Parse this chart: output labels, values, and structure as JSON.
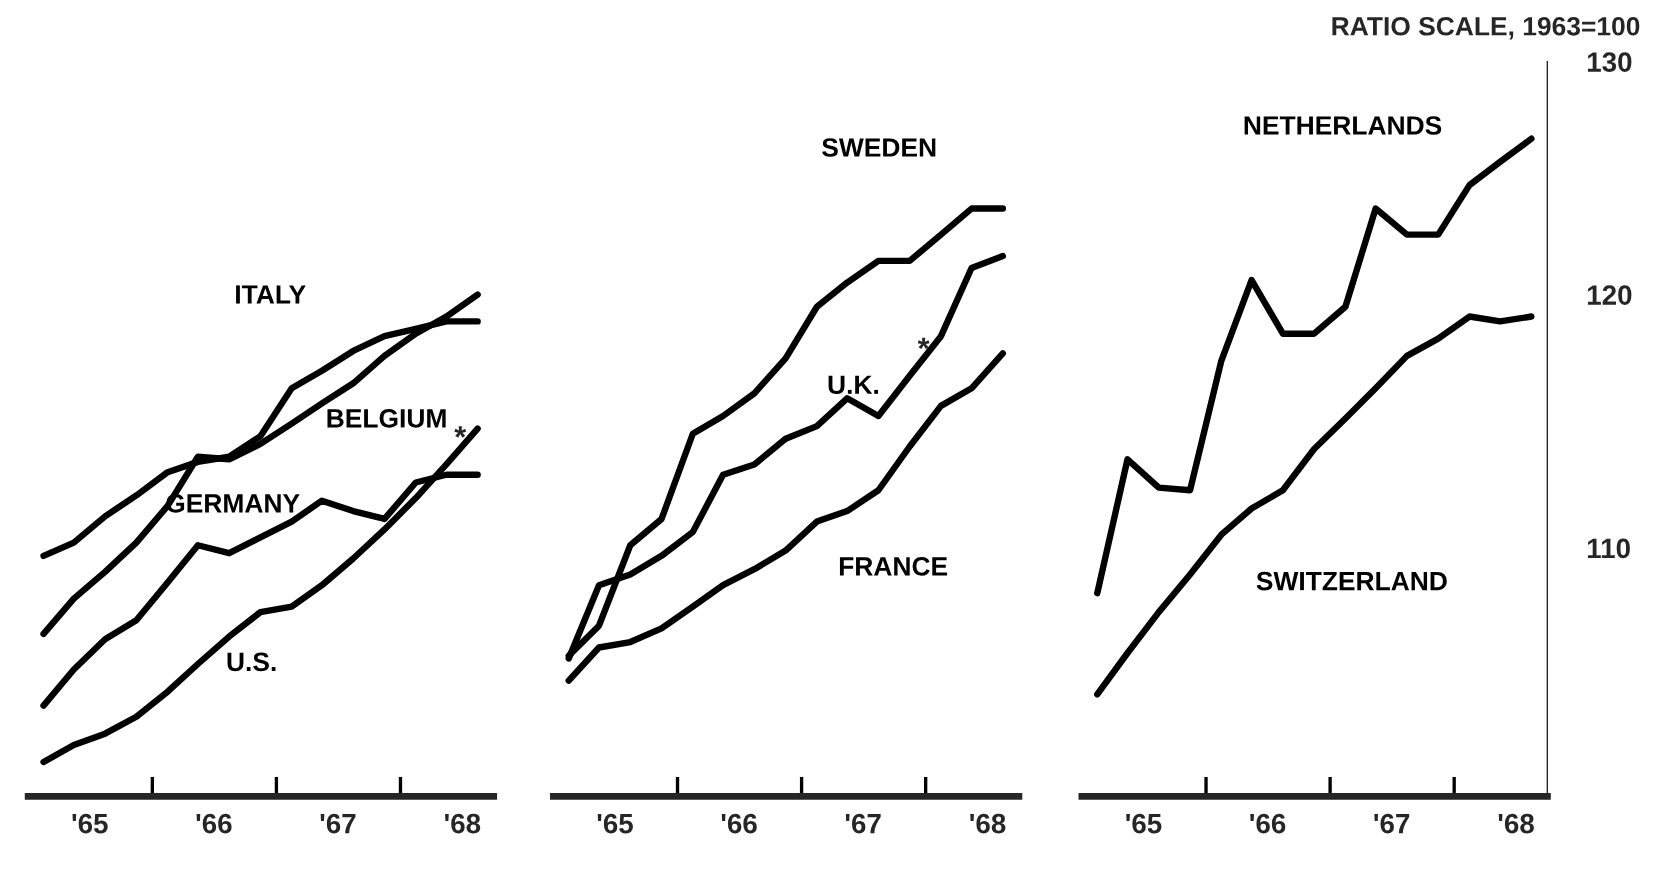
{
  "chart_data": [
    {
      "type": "line",
      "log": "y",
      "x": [
        "1965-02-15",
        "1965-05-15",
        "1965-08-15",
        "1965-11-15",
        "1966-02-15",
        "1966-05-15",
        "1966-08-15",
        "1966-11-15",
        "1967-02-15",
        "1967-05-15",
        "1967-08-15",
        "1967-11-15",
        "1968-02-15",
        "1968-05-15",
        "1968-08-15"
      ],
      "series": [
        {
          "name": "ITALY",
          "color": "#000000",
          "values": [
            109.7,
            110.2,
            111.2,
            112.0,
            112.9,
            113.3,
            113.5,
            114.3,
            116.2,
            116.9,
            117.7,
            118.3,
            118.6,
            118.9,
            118.9
          ]
        },
        {
          "name": "BELGIUM",
          "color": "#000000",
          "values": [
            106.8,
            108.1,
            109.1,
            110.2,
            111.6,
            113.5,
            113.4,
            114.0,
            114.8,
            115.6,
            116.4,
            117.5,
            118.4,
            119.1,
            120.0
          ]
        },
        {
          "name": "GERMANY",
          "color": "#000000",
          "values": [
            104.2,
            105.5,
            106.6,
            107.3,
            108.7,
            110.1,
            109.8,
            110.4,
            111.0,
            111.8,
            111.4,
            111.1,
            112.5,
            112.8,
            112.8
          ]
        },
        {
          "name": "U.S.",
          "color": "#000000",
          "values": [
            102.2,
            102.8,
            103.2,
            103.8,
            104.7,
            105.7,
            106.7,
            107.6,
            107.8,
            108.6,
            109.6,
            110.7,
            111.9,
            113.2,
            114.6
          ]
        }
      ],
      "xlim": [
        "1965-01-01",
        "1968-10-01"
      ],
      "xticks": [
        {
          "value": "1965-07",
          "label": "'65"
        },
        {
          "value": "1966-01",
          "label": null
        },
        {
          "value": "1966-07",
          "label": "'66"
        },
        {
          "value": "1967-01",
          "label": null
        },
        {
          "value": "1967-07",
          "label": "'67"
        },
        {
          "value": "1968-01",
          "label": null
        },
        {
          "value": "1968-07",
          "label": "'68"
        }
      ],
      "ylim": [
        101,
        130
      ],
      "tick_labels": "x",
      "marker": "none",
      "line_style": "solid",
      "annotations": [
        {
          "text": "*",
          "x": "1968-05-15",
          "y": 113.2
        }
      ]
    },
    {
      "type": "line",
      "log": "y",
      "x": [
        "1965-02-15",
        "1965-05-15",
        "1965-08-15",
        "1965-11-15",
        "1966-02-15",
        "1966-05-15",
        "1966-08-15",
        "1966-11-15",
        "1967-02-15",
        "1967-05-15",
        "1967-08-15",
        "1967-11-15",
        "1968-02-15",
        "1968-05-15",
        "1968-08-15"
      ],
      "series": [
        {
          "name": "SWEDEN",
          "color": "#000000",
          "values": [
            106.0,
            107.1,
            110.1,
            111.1,
            114.4,
            115.1,
            116.0,
            117.4,
            119.5,
            120.5,
            121.4,
            121.4,
            122.5,
            123.6,
            123.6
          ]
        },
        {
          "name": "U.K.",
          "color": "#000000",
          "values": [
            105.9,
            108.6,
            109.0,
            109.7,
            110.6,
            112.8,
            113.2,
            114.2,
            114.7,
            115.8,
            115.1,
            116.7,
            118.3,
            121.1,
            121.6
          ]
        },
        {
          "name": "FRANCE",
          "color": "#000000",
          "values": [
            105.1,
            106.3,
            106.5,
            107.0,
            107.8,
            108.6,
            109.2,
            109.9,
            111.0,
            111.4,
            112.2,
            113.9,
            115.5,
            116.2,
            117.6
          ]
        }
      ],
      "xlim": [
        "1965-01-01",
        "1968-10-01"
      ],
      "xticks": [
        {
          "value": "1965-07",
          "label": "'65"
        },
        {
          "value": "1966-01",
          "label": null
        },
        {
          "value": "1966-07",
          "label": "'66"
        },
        {
          "value": "1967-01",
          "label": null
        },
        {
          "value": "1967-07",
          "label": "'67"
        },
        {
          "value": "1968-01",
          "label": null
        },
        {
          "value": "1968-07",
          "label": "'68"
        }
      ],
      "ylim": [
        101,
        130
      ],
      "tick_labels": "x",
      "marker": "none",
      "line_style": "solid",
      "annotations": [
        {
          "text": "*",
          "x": "1967-11-15",
          "y": 116.7
        }
      ]
    },
    {
      "type": "line",
      "log": "y",
      "x": [
        "1965-02-15",
        "1965-05-15",
        "1965-08-15",
        "1965-11-15",
        "1966-02-15",
        "1966-05-15",
        "1966-08-15",
        "1966-11-15",
        "1967-02-15",
        "1967-05-15",
        "1967-08-15",
        "1967-11-15",
        "1968-02-15",
        "1968-05-15",
        "1968-08-15"
      ],
      "series": [
        {
          "name": "NETHERLANDS",
          "color": "#000000",
          "values": [
            108.3,
            113.4,
            112.3,
            112.2,
            117.3,
            120.6,
            118.4,
            118.4,
            119.5,
            123.6,
            122.5,
            122.5,
            124.6,
            125.6,
            126.6
          ]
        },
        {
          "name": "SWITZERLAND",
          "color": "#000000",
          "values": [
            104.6,
            106.1,
            107.6,
            109.0,
            110.5,
            111.5,
            112.2,
            113.8,
            115.0,
            116.2,
            117.5,
            118.2,
            119.1,
            118.9,
            119.1
          ]
        }
      ],
      "xlim": [
        "1965-01-01",
        "1968-10-01"
      ],
      "xticks": [
        {
          "value": "1965-07",
          "label": "'65"
        },
        {
          "value": "1966-01",
          "label": null
        },
        {
          "value": "1966-07",
          "label": "'66"
        },
        {
          "value": "1967-01",
          "label": null
        },
        {
          "value": "1967-07",
          "label": "'67"
        },
        {
          "value": "1968-01",
          "label": null
        },
        {
          "value": "1968-07",
          "label": "'68"
        }
      ],
      "ylim": [
        101,
        130
      ],
      "yticks": [
        110,
        120,
        130
      ],
      "ylabel": "RATIO SCALE, 1963=100",
      "marker": "none",
      "line_style": "solid"
    }
  ]
}
